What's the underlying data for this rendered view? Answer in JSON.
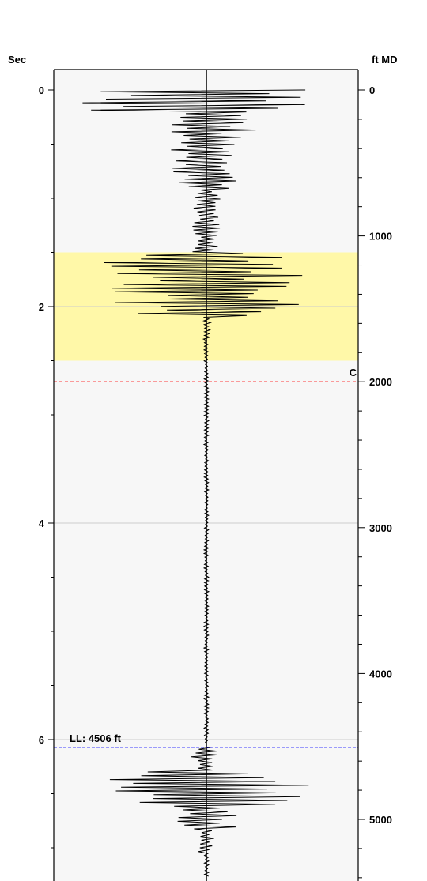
{
  "chart_data": {
    "type": "line",
    "left_axis": {
      "label": "Sec",
      "ticks": [
        "0",
        "2",
        "4",
        "6"
      ],
      "tick_values": [
        0,
        2,
        4,
        6
      ],
      "range": [
        0,
        7.3
      ]
    },
    "right_axis": {
      "label": "ft MD",
      "ticks": [
        "0",
        "1000",
        "2000",
        "3000",
        "4000",
        "5000"
      ],
      "tick_values": [
        0,
        1000,
        2000,
        3000,
        4000,
        5000
      ],
      "range": [
        0,
        5400
      ]
    },
    "highlight_band": {
      "from_sec": 1.5,
      "to_sec": 2.5,
      "color": "#fff8a8"
    },
    "markers": [
      {
        "name": "C",
        "label": "C",
        "depth_ft": 2000,
        "color": "#ff0000"
      },
      {
        "name": "LL",
        "label": "LL: 4506 ft",
        "depth_ft": 4506,
        "color": "#0000ff"
      }
    ],
    "grid": true,
    "gridlines_sec": [
      2,
      4,
      6
    ],
    "trace_color": "#000000"
  }
}
